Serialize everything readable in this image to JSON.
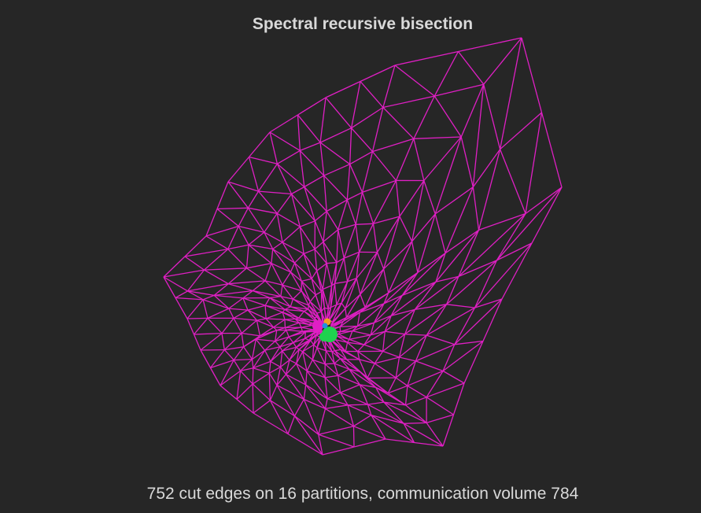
{
  "figure": {
    "title": "Spectral recursive bisection",
    "caption": "752 cut edges on 16 partitions, communication volume 784",
    "colors": {
      "background": "#262626",
      "mesh_edges": "#e01fc4",
      "text": "#d9d9d9",
      "partition_green": "#1fd24f",
      "partition_orange": "#f0a020",
      "partition_blue": "#1f8fe0"
    }
  }
}
